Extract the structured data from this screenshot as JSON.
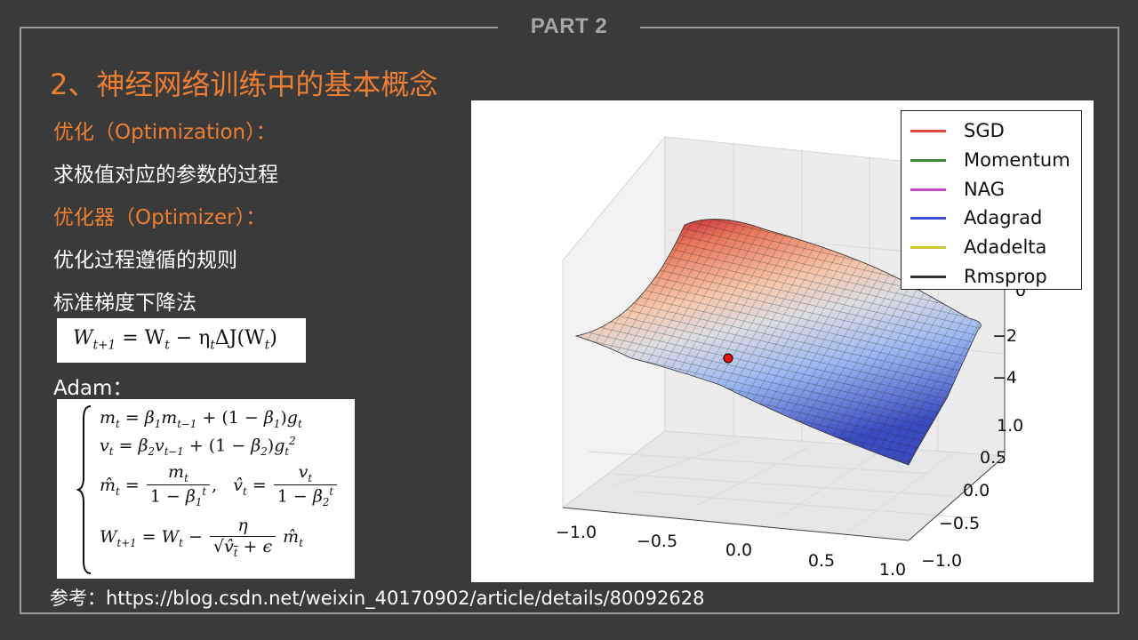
{
  "header": {
    "part_label": "PART 2"
  },
  "slide": {
    "title": "2、神经网络训练中的基本概念",
    "optimization_label": "优化（Optimization）：",
    "optimization_desc": "求极值对应的参数的过程",
    "optimizer_label": "优化器（Optimizer）：",
    "optimizer_desc": "优化过程遵循的规则",
    "sgd_label": "标准梯度下降法",
    "adam_label": "Adam：",
    "reference": "参考：https://blog.csdn.net/weixin_40170902/article/details/80092628"
  },
  "formulas": {
    "sgd": {
      "lhs": "W",
      "lhs_sub": "t+1",
      "rhs": "= W",
      "rhs_sub": "t",
      "minus": " − η",
      "eta_sub": "t",
      "tail": "ΔJ(W",
      "tail_sub": "t",
      "close": ")"
    },
    "adam": {
      "line1": "m_t = β₁m_{t−1} + (1 − β₁)g_t",
      "line2": "v_t = β₂v_{t−1} + (1 − β₂)g_t²",
      "line3": "m̂_t = m_t / (1 − β₁^t),  v̂_t = v_t / (1 − β₂^t)",
      "line4": "W_{t+1} = W_t − η / (√v̂_t + ϵ) · m̂_t"
    }
  },
  "plot": {
    "legend": [
      {
        "name": "SGD",
        "color": "#e0483a"
      },
      {
        "name": "Momentum",
        "color": "#3a8a3a"
      },
      {
        "name": "NAG",
        "color": "#c848c8"
      },
      {
        "name": "Adagrad",
        "color": "#3a4fd0"
      },
      {
        "name": "Adadelta",
        "color": "#c8c832"
      },
      {
        "name": "Rmsprop",
        "color": "#333333"
      }
    ],
    "x_ticks": [
      "−1.0",
      "−0.5",
      "0.0",
      "0.5",
      "1.0"
    ],
    "y_ticks": [
      "1.0",
      "0.5",
      "0.0",
      "−0.5",
      "−1.0"
    ],
    "z_ticks": [
      "0",
      "−2",
      "−4"
    ],
    "marker_color": "#e81010",
    "surface_high_color": "#b40426",
    "surface_low_color": "#3b4cc0"
  }
}
